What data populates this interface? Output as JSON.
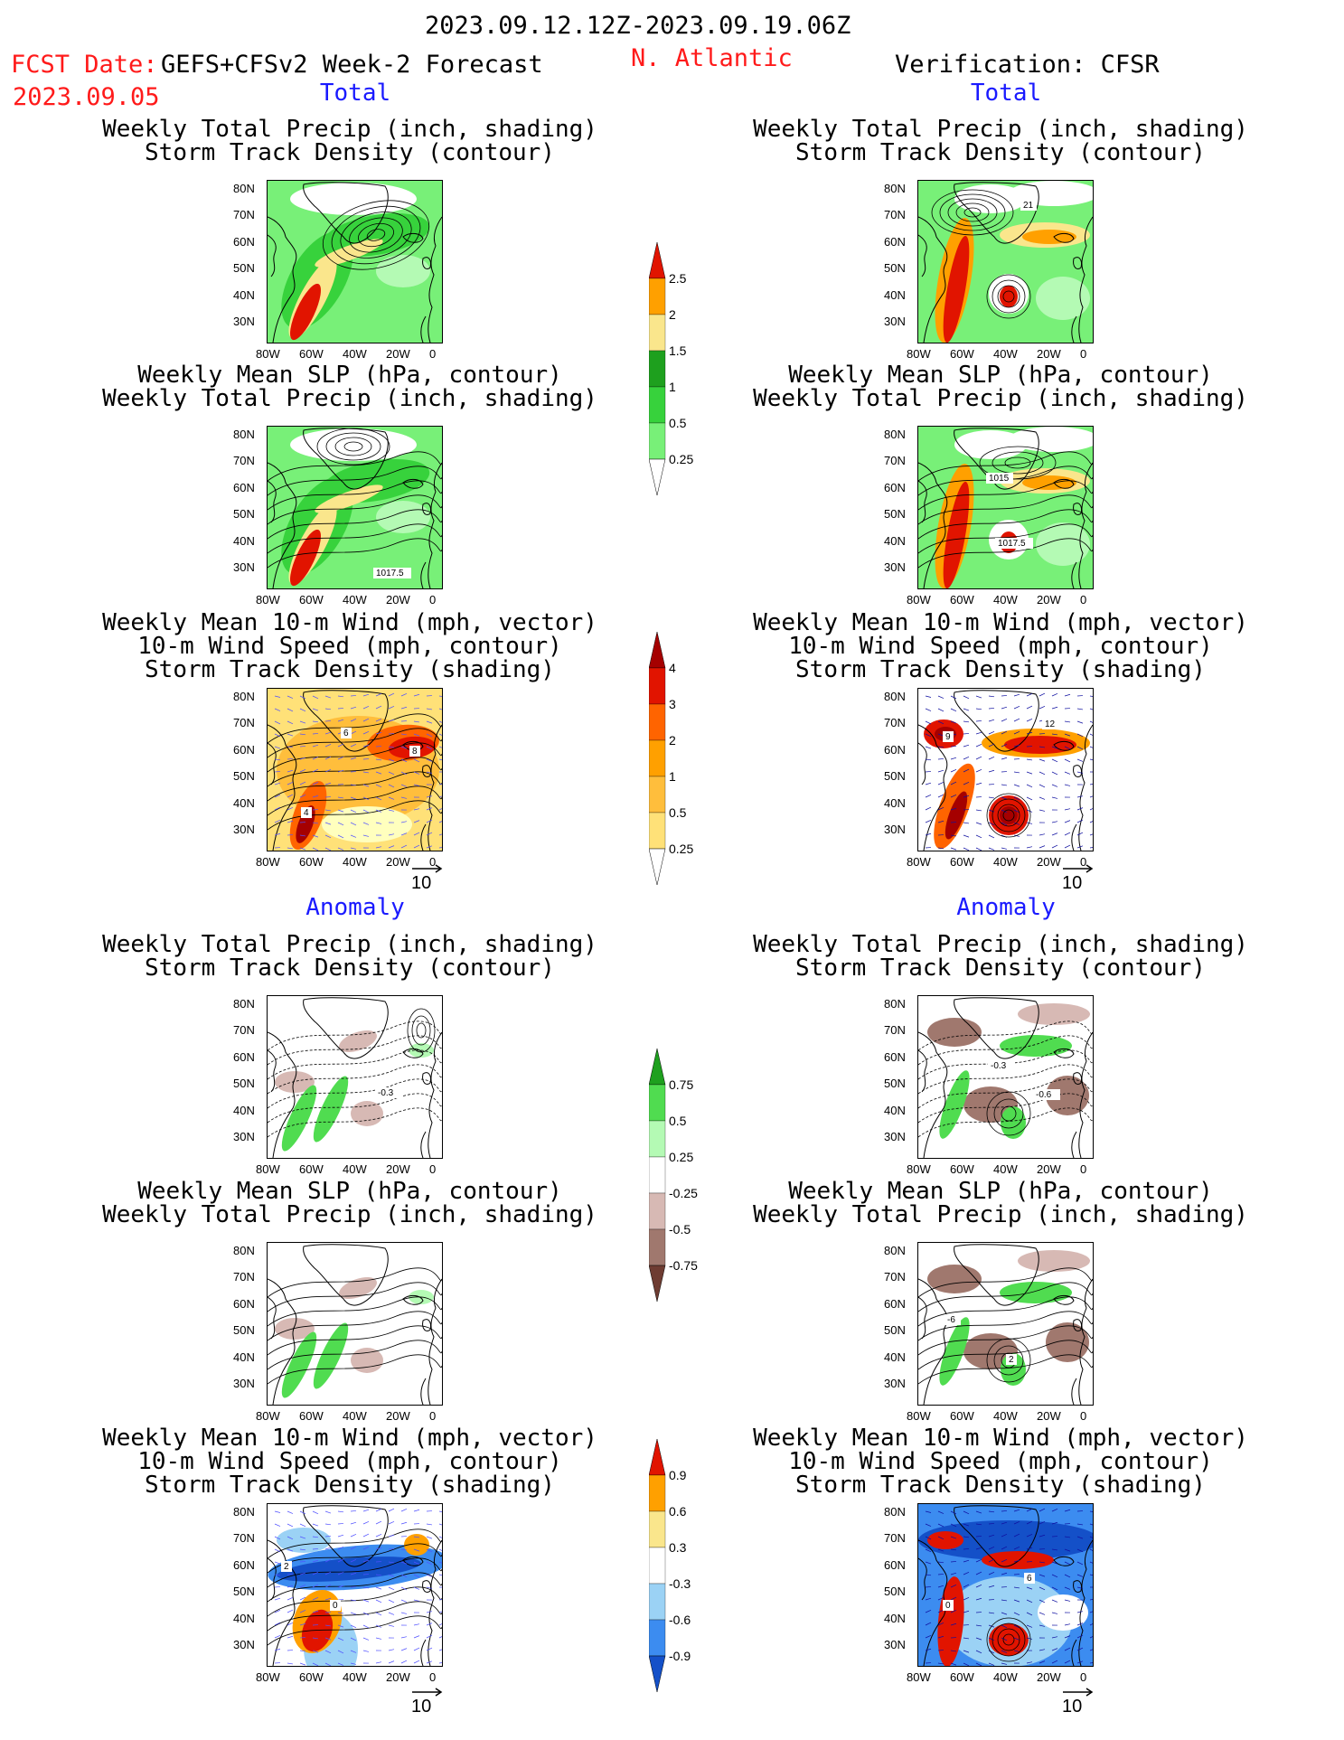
{
  "header": {
    "period": "2023.09.12.12Z-2023.09.19.06Z",
    "fcst_label": "FCST Date:",
    "fcst_model": "GEFS+CFSv2 Week-2 Forecast",
    "fcst_date": "2023.09.05",
    "region": "N. Atlantic",
    "verification": "Verification: CFSR"
  },
  "sections": {
    "total": "Total",
    "anomaly": "Anomaly"
  },
  "titles": {
    "precip_track": [
      "Weekly Total Precip (inch, shading)",
      "Storm Track Density (contour)"
    ],
    "slp_precip": [
      "Weekly Mean SLP (hPa, contour)",
      "Weekly Total Precip (inch, shading)"
    ],
    "wind_track": [
      "Weekly Mean 10-m Wind (mph, vector)",
      "10-m Wind Speed (mph, contour)",
      "Storm Track Density (shading)"
    ]
  },
  "axes": {
    "lat_ticks": [
      "80N",
      "70N",
      "60N",
      "50N",
      "40N",
      "30N"
    ],
    "lon_ticks": [
      "80W",
      "60W",
      "40W",
      "20W",
      "0"
    ]
  },
  "vector_ref": "10",
  "colors": {
    "precip": [
      "#b4fab4",
      "#78f078",
      "#37d23c",
      "#1ea01e",
      "#fae68c",
      "#ffa000",
      "#e11400"
    ],
    "track": [
      "#ffffbe",
      "#ffe178",
      "#ffbe3c",
      "#ffa000",
      "#ff6400",
      "#e11400",
      "#a50000"
    ],
    "precip_anom": [
      "#6e3c32",
      "#a0786e",
      "#d7b9b4",
      "#ffffff",
      "#b4fab4",
      "#50dc50",
      "#1ea01e"
    ],
    "track_anom": [
      "#1450c8",
      "#3c8cf0",
      "#9bd2f5",
      "#ffffff",
      "#fae68c",
      "#ffa000",
      "#e11400"
    ]
  },
  "colorbars": {
    "precip": [
      "0.25",
      "0.5",
      "1",
      "1.5",
      "2",
      "2.5"
    ],
    "track": [
      "0.25",
      "0.5",
      "1",
      "2",
      "3",
      "4"
    ],
    "precip_anom": [
      "-0.75",
      "-0.5",
      "-0.25",
      "0.25",
      "0.5",
      "0.75"
    ],
    "track_anom": [
      "-0.9",
      "-0.6",
      "-0.3",
      "0.3",
      "0.6",
      "0.9"
    ]
  },
  "map_labels": {
    "p1_left": [],
    "p1_right": [
      "21"
    ],
    "p2_left": [
      "1017.5"
    ],
    "p2_right": [
      "1015",
      "1017.5"
    ],
    "p3_left": [
      "8",
      "6",
      "4"
    ],
    "p3_right": [
      "12",
      "9"
    ],
    "a1_left": [
      "-0.3"
    ],
    "a1_right": [
      "-0.3",
      "-0.6"
    ],
    "a2_left": [],
    "a2_right": [
      "-6",
      "2"
    ],
    "a3_left": [
      "2",
      "0"
    ],
    "a3_right": [
      "6",
      "0"
    ]
  }
}
